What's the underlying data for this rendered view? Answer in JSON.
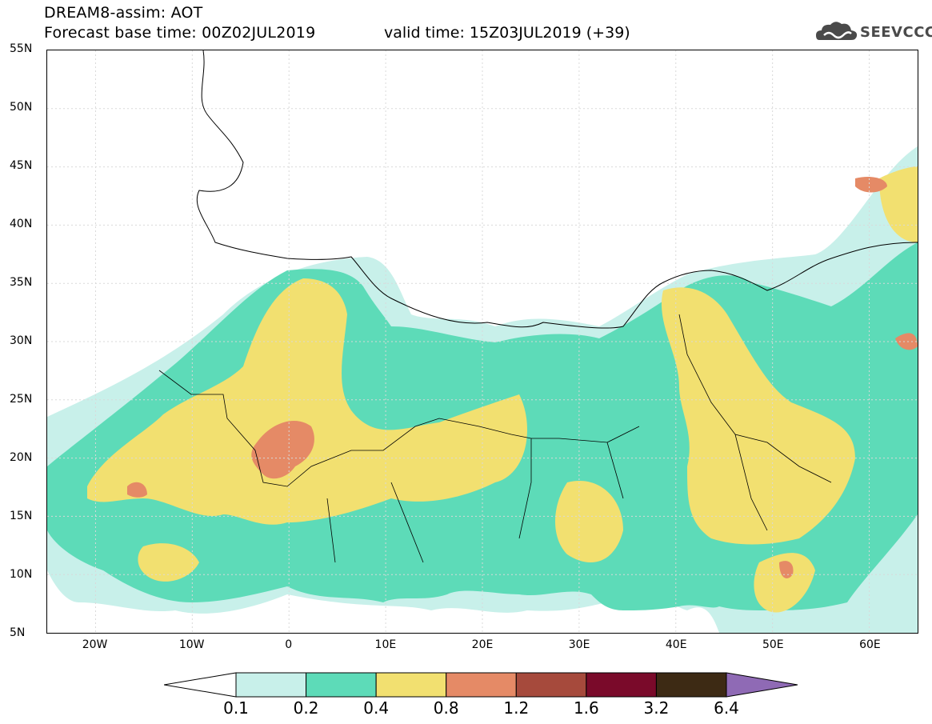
{
  "header": {
    "title_line1": "DREAM8-assim: AOT",
    "title_line2": "Forecast base time: 00Z02JUL2019",
    "valid_time": "valid time: 15Z03JUL2019 (+39)",
    "logo_text": "SEEVCCC"
  },
  "map": {
    "lat_labels": [
      "55N",
      "50N",
      "45N",
      "40N",
      "35N",
      "30N",
      "25N",
      "20N",
      "15N",
      "10N",
      "5N"
    ],
    "lon_labels": [
      "20W",
      "10W",
      "0",
      "10E",
      "20E",
      "30E",
      "40E",
      "50E",
      "60E"
    ],
    "lon_range": [
      -25,
      65
    ],
    "lat_range": [
      5,
      55
    ],
    "variable": "AOT",
    "colors": {
      "c01": "#c8f0ea",
      "c02": "#5ddbb8",
      "c04": "#f2e070",
      "c08": "#e58a66",
      "c12": "#a64a3c",
      "c16": "#7a0a2a",
      "c32": "#3d2a14",
      "c64": "#8f6ab5"
    }
  },
  "colorbar": {
    "labels": [
      "0.1",
      "0.2",
      "0.4",
      "0.8",
      "1.2",
      "1.6",
      "3.2",
      "6.4"
    ]
  }
}
